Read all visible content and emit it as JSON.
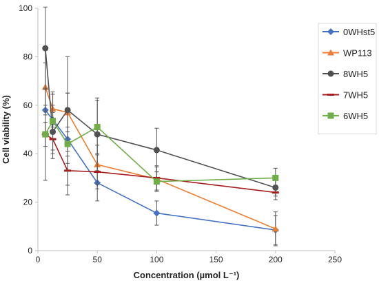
{
  "chart_data": {
    "type": "line",
    "title": "",
    "xlabel": "Concentration (µmol L⁻¹)",
    "ylabel": "Cell viability (%)",
    "xlim": [
      0,
      250
    ],
    "ylim": [
      0,
      100
    ],
    "xticks": [
      0,
      50,
      100,
      150,
      200,
      250
    ],
    "yticks": [
      0,
      20,
      40,
      60,
      80,
      100
    ],
    "grid": false,
    "legend_position": "right",
    "series": [
      {
        "name": "0WHst5",
        "color": "#4472c4",
        "marker": "diamond",
        "x": [
          6.25,
          12.5,
          25,
          50,
          100,
          200
        ],
        "y": [
          58,
          54,
          46,
          28,
          15.5,
          8.5
        ],
        "err": [
          2,
          3,
          5,
          7.5,
          5,
          6
        ]
      },
      {
        "name": "WP113",
        "color": "#ed7d31",
        "marker": "triangle",
        "x": [
          6.25,
          12.5,
          25,
          50,
          100,
          200
        ],
        "y": [
          67.5,
          58.5,
          57,
          35.5,
          29.5,
          9
        ],
        "err": [
          10,
          6,
          8,
          8,
          5,
          7
        ]
      },
      {
        "name": "8WH5",
        "color": "#505050",
        "marker": "circle",
        "x": [
          6.25,
          12.5,
          25,
          50,
          100,
          200
        ],
        "y": [
          83.5,
          49,
          58,
          48,
          41.5,
          26
        ],
        "err": [
          17,
          11,
          22,
          15,
          9,
          3.5
        ]
      },
      {
        "name": "7WH5",
        "color": "#a61b1b",
        "marker": "dash",
        "x": [
          6.25,
          12.5,
          25,
          50,
          100,
          200
        ],
        "y": [
          48,
          46,
          33,
          32.5,
          30,
          24
        ],
        "err": [
          5,
          6,
          6,
          7,
          5,
          3
        ]
      },
      {
        "name": "6WH5",
        "color": "#70ad47",
        "marker": "square",
        "x": [
          6.25,
          12.5,
          25,
          50,
          100,
          200
        ],
        "y": [
          48,
          53.5,
          44,
          51,
          28.5,
          30
        ],
        "err": [
          19,
          12,
          21,
          11,
          4,
          4
        ]
      }
    ]
  }
}
